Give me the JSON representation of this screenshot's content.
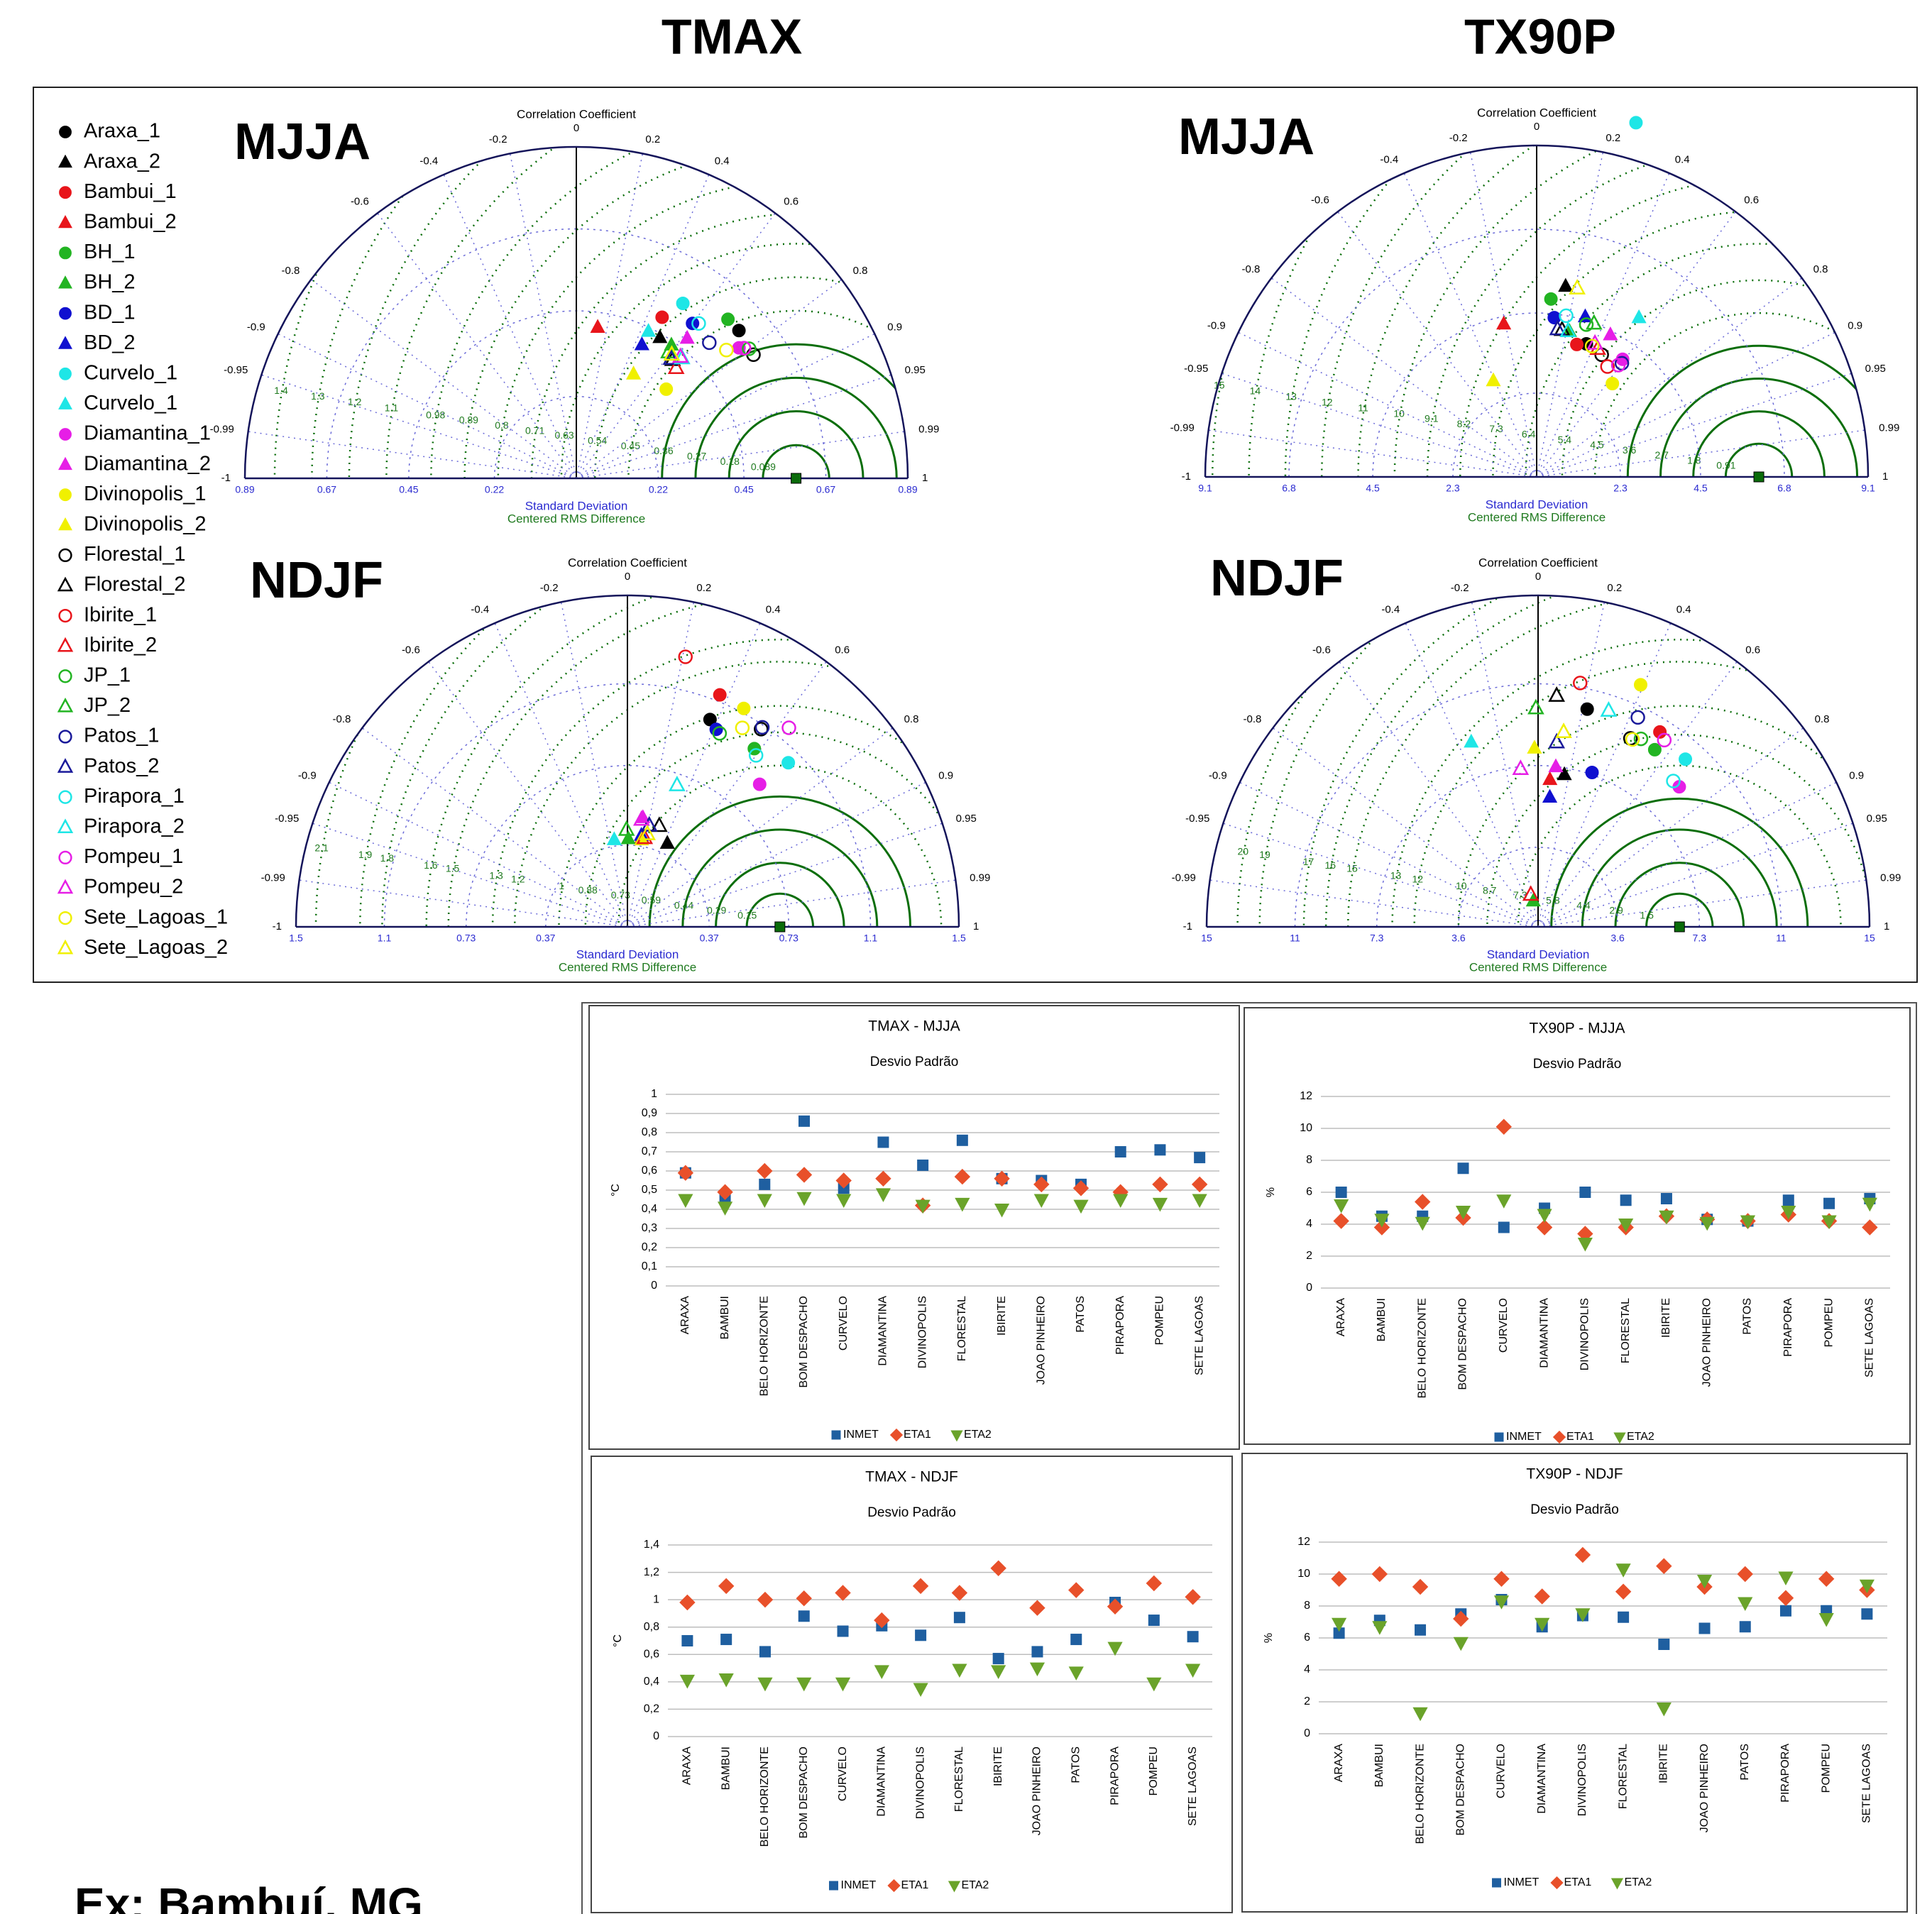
{
  "header": {
    "left_title": "TMAX",
    "right_title": "TX90P",
    "footer": "Ex: Bambuí, MG"
  },
  "legend": [
    {
      "name": "Araxa_1",
      "color": "#000000",
      "marker": "circle",
      "filled": true
    },
    {
      "name": "Araxa_2",
      "color": "#000000",
      "marker": "triangle",
      "filled": true
    },
    {
      "name": "Bambui_1",
      "color": "#e8151b",
      "marker": "circle",
      "filled": true
    },
    {
      "name": "Bambui_2",
      "color": "#e8151b",
      "marker": "triangle",
      "filled": true
    },
    {
      "name": "BH_1",
      "color": "#22b422",
      "marker": "circle",
      "filled": true
    },
    {
      "name": "BH_2",
      "color": "#22b422",
      "marker": "triangle",
      "filled": true
    },
    {
      "name": "BD_1",
      "color": "#1010d0",
      "marker": "circle",
      "filled": true
    },
    {
      "name": "BD_2",
      "color": "#1010d0",
      "marker": "triangle",
      "filled": true
    },
    {
      "name": "Curvelo_1",
      "color": "#1ee6e6",
      "marker": "circle",
      "filled": true
    },
    {
      "name": "Curvelo_1",
      "color": "#1ee6e6",
      "marker": "triangle",
      "filled": true
    },
    {
      "name": "Diamantina_1",
      "color": "#e61ee6",
      "marker": "circle",
      "filled": true
    },
    {
      "name": "Diamantina_2",
      "color": "#e61ee6",
      "marker": "triangle",
      "filled": true
    },
    {
      "name": "Divinopolis_1",
      "color": "#f0f000",
      "marker": "circle",
      "filled": true
    },
    {
      "name": "Divinopolis_2",
      "color": "#f0f000",
      "marker": "triangle",
      "filled": true
    },
    {
      "name": "Florestal_1",
      "color": "#000000",
      "marker": "circle",
      "filled": false
    },
    {
      "name": "Florestal_2",
      "color": "#000000",
      "marker": "triangle",
      "filled": false
    },
    {
      "name": "Ibirite_1",
      "color": "#e8151b",
      "marker": "circle",
      "filled": false
    },
    {
      "name": "Ibirite_2",
      "color": "#e8151b",
      "marker": "triangle",
      "filled": false
    },
    {
      "name": "JP_1",
      "color": "#22b422",
      "marker": "circle",
      "filled": false
    },
    {
      "name": "JP_2",
      "color": "#22b422",
      "marker": "triangle",
      "filled": false
    },
    {
      "name": "Patos_1",
      "color": "#1a1a9a",
      "marker": "circle",
      "filled": false
    },
    {
      "name": "Patos_2",
      "color": "#1a1a9a",
      "marker": "triangle",
      "filled": false
    },
    {
      "name": "Pirapora_1",
      "color": "#1ee6e6",
      "marker": "circle",
      "filled": false
    },
    {
      "name": "Pirapora_2",
      "color": "#1ee6e6",
      "marker": "triangle",
      "filled": false
    },
    {
      "name": "Pompeu_1",
      "color": "#e61ee6",
      "marker": "circle",
      "filled": false
    },
    {
      "name": "Pompeu_2",
      "color": "#e61ee6",
      "marker": "triangle",
      "filled": false
    },
    {
      "name": "Sete_Lagoas_1",
      "color": "#f0f000",
      "marker": "circle",
      "filled": false
    },
    {
      "name": "Sete_Lagoas_2",
      "color": "#f0f000",
      "marker": "triangle",
      "filled": false
    }
  ],
  "chart_data": [
    {
      "type": "taylor",
      "title": "MJJA",
      "corr_label": "Correlation Coefficient",
      "x_label": "Standard Deviation",
      "rms_label": "Centered RMS Difference",
      "corr_ticks": [
        -1,
        -0.99,
        -0.95,
        -0.9,
        -0.8,
        -0.6,
        -0.4,
        -0.2,
        0,
        0.2,
        0.4,
        0.6,
        0.8,
        0.9,
        0.95,
        0.99,
        1
      ],
      "stdlim": [
        0,
        0.89
      ],
      "std_ticks": [
        0.22,
        0.45,
        0.67,
        0.89
      ],
      "rms_ticks": [
        0.089,
        0.18,
        0.27,
        0.36,
        0.45,
        0.54,
        0.63,
        0.71,
        0.8,
        0.89,
        0.98,
        1.1,
        1.2,
        1.3,
        1.4
      ],
      "reference_std": 0.59,
      "reference_color": "#0a6b0a",
      "std": [
        0.59,
        0.44,
        0.49,
        0.41,
        0.59,
        0.44,
        0.52,
        0.4,
        0.55,
        0.44,
        0.56,
        0.48,
        0.34,
        0.32,
        0.58,
        0.41,
        0.57,
        0.4,
        0.58,
        0.42,
        0.51,
        0.41,
        0.53,
        0.43,
        0.57,
        0.43,
        0.53,
        0.42
      ],
      "corr": [
        0.74,
        0.51,
        0.47,
        0.14,
        0.69,
        0.58,
        0.6,
        0.44,
        0.52,
        0.44,
        0.78,
        0.62,
        0.71,
        0.48,
        0.82,
        0.63,
        0.79,
        0.67,
        0.8,
        0.59,
        0.7,
        0.62,
        0.62,
        0.66,
        0.79,
        0.65,
        0.76,
        0.61
      ]
    },
    {
      "type": "taylor",
      "title": "NDJF",
      "corr_label": "Correlation Coefficient",
      "x_label": "Standard Deviation",
      "rms_label": "Centered RMS Difference",
      "corr_ticks": [
        -1,
        -0.99,
        -0.95,
        -0.9,
        -0.8,
        -0.6,
        -0.4,
        -0.2,
        0,
        0.2,
        0.4,
        0.6,
        0.8,
        0.9,
        0.95,
        0.99,
        1
      ],
      "stdlim": [
        0,
        1.5
      ],
      "std_ticks": [
        0.37,
        0.73,
        1.1,
        1.5
      ],
      "rms_ticks": [
        0.15,
        0.29,
        0.44,
        0.59,
        0.73,
        0.88,
        1,
        1.2,
        1.3,
        1.5,
        1.6,
        1.8,
        1.9,
        2.1
      ],
      "reference_std": 0.69,
      "reference_color": "#0a6b0a",
      "std": [
        1.01,
        0.42,
        1.13,
        0.41,
        0.99,
        0.4,
        0.98,
        0.42,
        1.04,
        0.4,
        0.88,
        0.5,
        1.12,
        0.4,
        1.08,
        0.48,
        1.25,
        0.41,
        0.97,
        0.44,
        1.09,
        0.47,
        0.97,
        0.68,
        1.16,
        0.49,
        1.04,
        0.43
      ],
      "corr": [
        0.37,
        0.43,
        0.37,
        0.16,
        0.58,
        0.01,
        0.41,
        0.15,
        0.7,
        -0.15,
        0.68,
        0.14,
        0.47,
        0.16,
        0.56,
        0.3,
        0.21,
        0.19,
        0.43,
        -0.01,
        0.56,
        0.21,
        0.6,
        0.33,
        0.63,
        0.13,
        0.5,
        0.21
      ]
    },
    {
      "type": "taylor",
      "title": "MJJA",
      "corr_label": "Correlation Coefficient",
      "x_label": "Standard Deviation",
      "rms_label": "Centered RMS Difference",
      "corr_ticks": [
        -1,
        -0.99,
        -0.95,
        -0.9,
        -0.8,
        -0.6,
        -0.4,
        -0.2,
        0,
        0.2,
        0.4,
        0.6,
        0.8,
        0.9,
        0.95,
        0.99,
        1
      ],
      "stdlim": [
        0,
        9.1
      ],
      "std_ticks": [
        2.3,
        4.5,
        6.8,
        9.1
      ],
      "rms_ticks": [
        0.91,
        1.8,
        2.7,
        3.6,
        4.5,
        5.4,
        6.4,
        7.3,
        8.2,
        9.1,
        10,
        11,
        12,
        13,
        14,
        15
      ],
      "reference_std": 6.1,
      "reference_color": "#0a6b0a",
      "std": [
        3.9,
        5.3,
        3.8,
        4.3,
        4.9,
        4.1,
        4.4,
        4.6,
        10.1,
        5.2,
        4.0,
        4.4,
        3.3,
        2.9,
        3.8,
        4.1,
        3.6,
        3.9,
        4.4,
        4.5,
        3.9,
        4.1,
        4.5,
        4.1,
        3.8,
        4.0,
        3.9,
        5.3
      ],
      "corr": [
        0.35,
        0.15,
        0.29,
        -0.21,
        0.08,
        0.22,
        0.11,
        0.29,
        0.27,
        0.54,
        0.59,
        0.46,
        0.63,
        -0.41,
        0.47,
        0.17,
        0.54,
        0.43,
        0.31,
        0.35,
        0.6,
        0.14,
        0.18,
        0.21,
        0.59,
        0.4,
        0.39,
        0.21
      ]
    },
    {
      "type": "taylor",
      "title": "NDJF",
      "corr_label": "Correlation Coefficient",
      "x_label": "Standard Deviation",
      "rms_label": "Centered RMS Difference",
      "corr_ticks": [
        -1,
        -0.99,
        -0.95,
        -0.9,
        -0.8,
        -0.6,
        -0.4,
        -0.2,
        0,
        0.2,
        0.4,
        0.6,
        0.8,
        0.9,
        0.95,
        0.99,
        1
      ],
      "stdlim": [
        0,
        15
      ],
      "std_ticks": [
        3.6,
        7.3,
        11,
        15
      ],
      "rms_ticks": [
        1.5,
        2.9,
        4.4,
        5.8,
        7.3,
        8.7,
        10,
        12,
        13,
        15,
        16,
        17,
        19,
        20
      ],
      "reference_std": 6.4,
      "reference_color": "#0a6b0a",
      "std": [
        10.1,
        7.0,
        10.4,
        6.7,
        9.6,
        1.2,
        7.4,
        5.9,
        10.1,
        8.9,
        9.0,
        7.3,
        11.9,
        8.1,
        9.5,
        10.5,
        11.2,
        1.5,
        9.7,
        9.9,
        10.5,
        8.4,
        9.0,
        10.3,
        10.2,
        7.2,
        9.5,
        8.9
      ],
      "corr": [
        0.22,
        0.17,
        0.53,
        0.08,
        0.55,
        -0.18,
        0.33,
        0.09,
        0.66,
        -0.34,
        0.71,
        0.11,
        0.39,
        -0.02,
        0.44,
        0.08,
        0.17,
        -0.22,
        0.48,
        -0.01,
        0.43,
        0.1,
        0.68,
        0.31,
        0.56,
        -0.11,
        0.45,
        0.13
      ]
    },
    {
      "type": "scatter",
      "title": "TMAX - MJJA",
      "subtitle": "Desvio Padrão",
      "y_label": "°C",
      "categories": [
        "ARAXA",
        "BAMBUI",
        "BELO HORIZONTE",
        "BOM DESPACHO",
        "CURVELO",
        "DIAMANTINA",
        "DIVINOPOLIS",
        "FLORESTAL",
        "IBIRITE",
        "JOAO PINHEIRO",
        "PATOS",
        "PIRAPORA",
        "POMPEU",
        "SETE LAGOAS"
      ],
      "ylim": [
        0,
        1
      ],
      "grid": true,
      "yticks": [
        0,
        {
          "value": 0.1,
          "label": "0,1"
        },
        {
          "value": 0.2,
          "label": "0,2"
        },
        {
          "value": 0.3,
          "label": "0,3"
        },
        {
          "value": 0.4,
          "label": "0,4"
        },
        {
          "value": 0.5,
          "label": "0,5"
        },
        {
          "value": 0.6,
          "label": "0,6"
        },
        {
          "value": 0.7,
          "label": "0,7"
        },
        {
          "value": 0.8,
          "label": "0,8"
        },
        {
          "value": 0.9,
          "label": "0,9"
        },
        1
      ],
      "series": [
        {
          "name": "INMET",
          "color": "#1f5fa0",
          "marker": "square",
          "values": [
            0.59,
            0.46,
            0.53,
            0.86,
            0.51,
            0.75,
            0.63,
            0.76,
            0.56,
            0.55,
            0.53,
            0.7,
            0.71,
            0.67
          ]
        },
        {
          "name": "ETA1",
          "color": "#e8502a",
          "marker": "diamond",
          "values": [
            0.59,
            0.49,
            0.6,
            0.58,
            0.55,
            0.56,
            0.42,
            0.57,
            0.56,
            0.53,
            0.51,
            0.49,
            0.53,
            0.53
          ]
        },
        {
          "name": "ETA2",
          "color": "#6aa32a",
          "marker": "triangle-down",
          "values": [
            0.45,
            0.41,
            0.45,
            0.46,
            0.45,
            0.48,
            0.42,
            0.43,
            0.4,
            0.45,
            0.42,
            0.45,
            0.43,
            0.45
          ]
        }
      ]
    },
    {
      "type": "scatter",
      "title": "TX90P - MJJA",
      "subtitle": "Desvio Padrão",
      "y_label": "%",
      "categories": [
        "ARAXA",
        "BAMBUI",
        "BELO HORIZONTE",
        "BOM DESPACHO",
        "CURVELO",
        "DIAMANTINA",
        "DIVINOPOLIS",
        "FLORESTAL",
        "IBIRITE",
        "JOAO PINHEIRO",
        "PATOS",
        "PIRAPORA",
        "POMPEU",
        "SETE LAGOAS"
      ],
      "ylim": [
        0,
        12
      ],
      "grid": true,
      "yticks": [
        0,
        2,
        4,
        6,
        8,
        10,
        12
      ],
      "series": [
        {
          "name": "INMET",
          "color": "#1f5fa0",
          "marker": "square",
          "values": [
            6.0,
            4.5,
            4.5,
            7.5,
            3.8,
            5.0,
            6.0,
            5.5,
            5.6,
            4.3,
            4.2,
            5.5,
            5.3,
            5.6
          ]
        },
        {
          "name": "ETA1",
          "color": "#e8502a",
          "marker": "diamond",
          "values": [
            4.2,
            3.8,
            5.4,
            4.4,
            10.1,
            3.8,
            3.4,
            3.8,
            4.5,
            4.3,
            4.2,
            4.6,
            4.2,
            3.8
          ]
        },
        {
          "name": "ETA2",
          "color": "#6aa32a",
          "marker": "triangle-down",
          "values": [
            5.2,
            4.3,
            4.1,
            4.8,
            5.5,
            4.6,
            2.8,
            4.0,
            4.5,
            4.1,
            4.2,
            4.8,
            4.2,
            5.3
          ]
        }
      ]
    },
    {
      "type": "scatter",
      "title": "TMAX - NDJF",
      "subtitle": "Desvio Padrão",
      "y_label": "°C",
      "categories": [
        "ARAXA",
        "BAMBUI",
        "BELO HORIZONTE",
        "BOM DESPACHO",
        "CURVELO",
        "DIAMANTINA",
        "DIVINOPOLIS",
        "FLORESTAL",
        "IBIRITE",
        "JOAO PINHEIRO",
        "PATOS",
        "PIRAPORA",
        "POMPEU",
        "SETE LAGOAS"
      ],
      "ylim": [
        0,
        1.4
      ],
      "grid": true,
      "yticks": [
        0,
        {
          "value": 0.2,
          "label": "0,2"
        },
        {
          "value": 0.4,
          "label": "0,4"
        },
        {
          "value": 0.6,
          "label": "0,6"
        },
        {
          "value": 0.8,
          "label": "0,8"
        },
        1,
        {
          "value": 1.2,
          "label": "1,2"
        },
        {
          "value": 1.4,
          "label": "1,4"
        }
      ],
      "series": [
        {
          "name": "INMET",
          "color": "#1f5fa0",
          "marker": "square",
          "values": [
            0.7,
            0.71,
            0.62,
            0.88,
            0.77,
            0.81,
            0.74,
            0.87,
            0.57,
            0.62,
            0.71,
            0.98,
            0.85,
            0.73
          ]
        },
        {
          "name": "ETA1",
          "color": "#e8502a",
          "marker": "diamond",
          "values": [
            0.98,
            1.1,
            1.0,
            1.01,
            1.05,
            0.85,
            1.1,
            1.05,
            1.23,
            0.94,
            1.07,
            0.95,
            1.12,
            1.02
          ]
        },
        {
          "name": "ETA2",
          "color": "#6aa32a",
          "marker": "triangle-down",
          "values": [
            0.41,
            0.42,
            0.39,
            0.39,
            0.39,
            0.48,
            0.35,
            0.49,
            0.48,
            0.5,
            0.47,
            0.65,
            0.39,
            0.49
          ]
        }
      ]
    },
    {
      "type": "scatter",
      "title": "TX90P - NDJF",
      "subtitle": "Desvio Padrão",
      "y_label": "%",
      "categories": [
        "ARAXA",
        "BAMBUI",
        "BELO HORIZONTE",
        "BOM DESPACHO",
        "CURVELO",
        "DIAMANTINA",
        "DIVINOPOLIS",
        "FLORESTAL",
        "IBIRITE",
        "JOAO PINHEIRO",
        "PATOS",
        "PIRAPORA",
        "POMPEU",
        "SETE LAGOAS"
      ],
      "ylim": [
        0,
        12
      ],
      "grid": true,
      "yticks": [
        0,
        2,
        4,
        6,
        8,
        10,
        12
      ],
      "series": [
        {
          "name": "INMET",
          "color": "#1f5fa0",
          "marker": "square",
          "values": [
            6.3,
            7.1,
            6.5,
            7.5,
            8.4,
            6.7,
            7.4,
            7.3,
            5.6,
            6.6,
            6.7,
            7.7,
            7.7,
            7.5
          ]
        },
        {
          "name": "ETA1",
          "color": "#e8502a",
          "marker": "diamond",
          "values": [
            9.7,
            10.0,
            9.2,
            7.2,
            9.7,
            8.6,
            11.2,
            8.9,
            10.5,
            9.2,
            10.0,
            8.5,
            9.7,
            9.0
          ]
        },
        {
          "name": "ETA2",
          "color": "#6aa32a",
          "marker": "triangle-down",
          "values": [
            6.9,
            6.7,
            1.3,
            5.7,
            8.3,
            6.9,
            7.5,
            10.3,
            1.6,
            9.6,
            8.2,
            9.8,
            7.2,
            9.3
          ]
        }
      ]
    }
  ]
}
